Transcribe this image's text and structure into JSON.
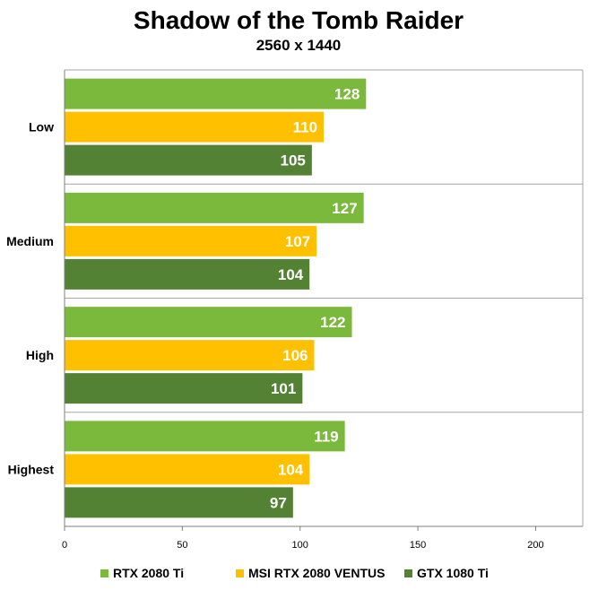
{
  "chart_data": {
    "type": "bar",
    "orientation": "horizontal",
    "title": "Shadow of the Tomb Raider",
    "subtitle": "2560 x 1440",
    "categories": [
      "Low",
      "Medium",
      "High",
      "Highest"
    ],
    "series": [
      {
        "name": "RTX 2080 Ti",
        "color": "#7ab93b",
        "values": [
          128,
          127,
          122,
          119
        ]
      },
      {
        "name": "MSI RTX 2080 VENTUS",
        "color": "#ffc000",
        "values": [
          110,
          107,
          106,
          104
        ]
      },
      {
        "name": "GTX 1080 Ti",
        "color": "#548235",
        "values": [
          105,
          104,
          101,
          97
        ]
      }
    ],
    "xticks": [
      0,
      50,
      100,
      150,
      200
    ],
    "xlim": [
      0,
      220
    ],
    "grid": true,
    "legend_position": "bottom"
  }
}
